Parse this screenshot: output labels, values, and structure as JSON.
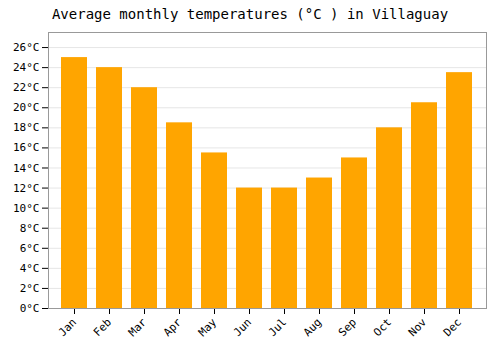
{
  "chart_data": {
    "type": "bar",
    "title": "Average monthly temperatures (°C ) in Villaguay",
    "categories": [
      "Jan",
      "Feb",
      "Mar",
      "Apr",
      "May",
      "Jun",
      "Jul",
      "Aug",
      "Sep",
      "Oct",
      "Nov",
      "Dec"
    ],
    "values": [
      25.0,
      24.0,
      22.0,
      18.5,
      15.5,
      12.0,
      12.0,
      13.0,
      15.0,
      18.0,
      20.5,
      23.5
    ],
    "color": "#FFA500",
    "ylim": [
      0,
      27.5
    ],
    "yticks": [
      {
        "value": 0,
        "label": "0°C"
      },
      {
        "value": 2,
        "label": "2°C"
      },
      {
        "value": 4,
        "label": "4°C"
      },
      {
        "value": 6,
        "label": "6°C"
      },
      {
        "value": 8,
        "label": "8°C"
      },
      {
        "value": 10,
        "label": "10°C"
      },
      {
        "value": 12,
        "label": "12°C"
      },
      {
        "value": 14,
        "label": "14°C"
      },
      {
        "value": 16,
        "label": "16°C"
      },
      {
        "value": 18,
        "label": "18°C"
      },
      {
        "value": 20,
        "label": "20°C"
      },
      {
        "value": 22,
        "label": "22°C"
      },
      {
        "value": 24,
        "label": "24°C"
      },
      {
        "value": 26,
        "label": "26°C"
      }
    ],
    "grid": true
  }
}
